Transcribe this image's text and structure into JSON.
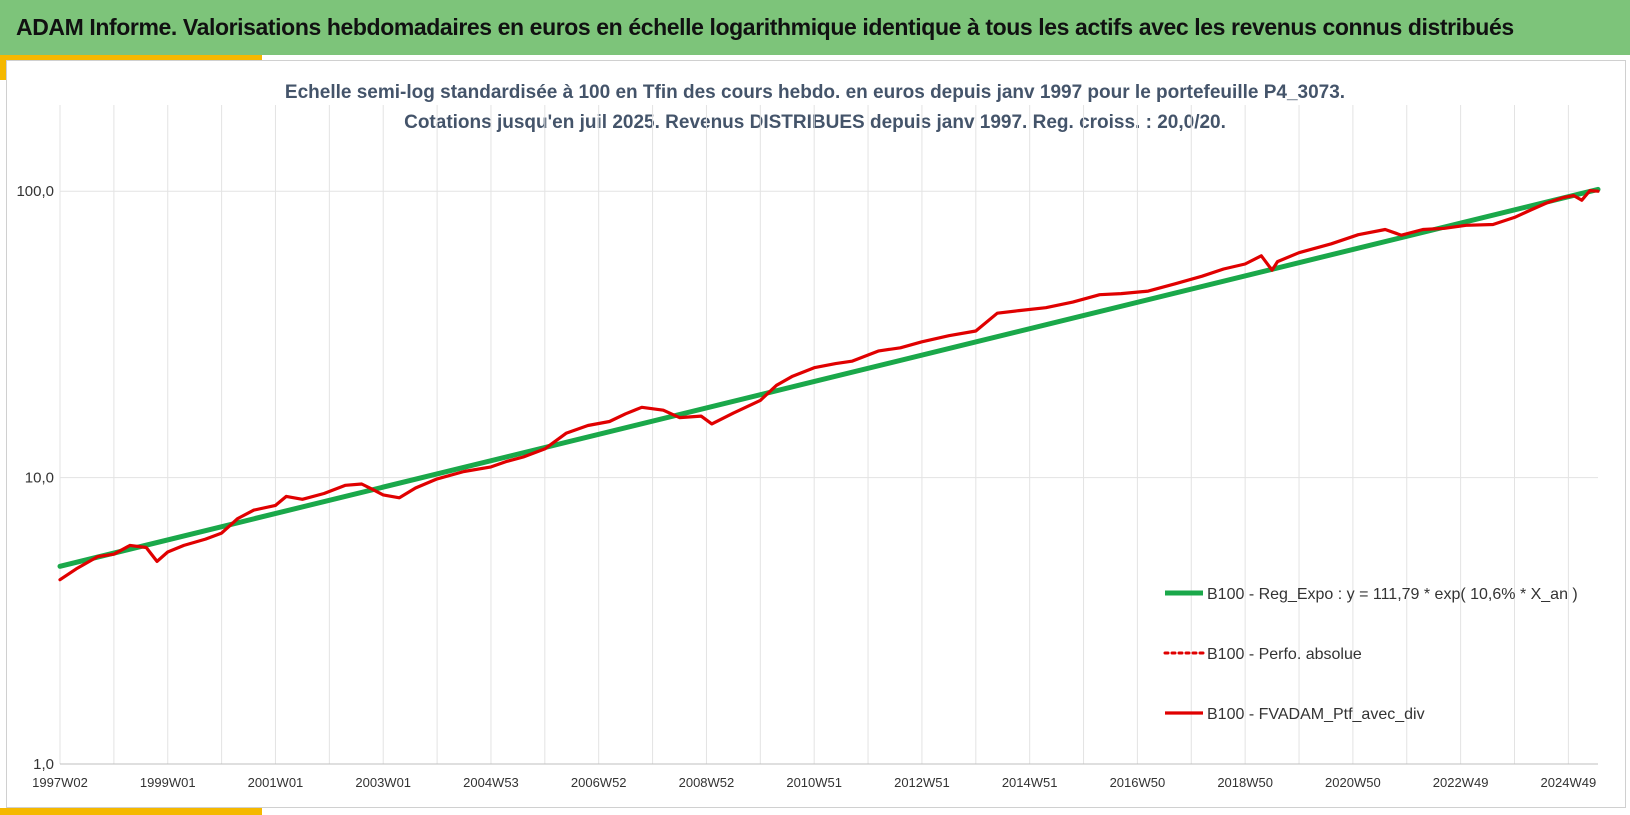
{
  "header": {
    "title": "ADAM Informe. Valorisations hebdomadaires en euros en échelle logarithmique identique à tous les actifs avec les revenus connus distribués"
  },
  "colors": {
    "header_bg": "#7dc47a",
    "accent": "#f5b800",
    "regression": "#1aa84a",
    "portfolio": "#e00000",
    "subtitle": "#44546a",
    "grid": "#e3e3e3"
  },
  "chart_data": {
    "type": "line",
    "subtitle_line1": "Echelle semi-log standardisée à 100 en Tfin des cours hebdo. en euros depuis janv 1997 pour le portefeuille P4_3073.",
    "subtitle_line2": "Cotations jusqu'en juil 2025. Revenus DISTRIBUES depuis janv 1997. Reg. croiss. : 20,0/20.",
    "y_scale": "log",
    "ylim": [
      1,
      200
    ],
    "y_ticks": [
      "1,0",
      "10,0",
      "100,0"
    ],
    "y_tick_values": [
      1,
      10,
      100
    ],
    "x_range": [
      1997.0,
      2025.55
    ],
    "x_ticks": [
      "1997W02",
      "1999W01",
      "2001W01",
      "2003W01",
      "2004W53",
      "2006W52",
      "2008W52",
      "2010W51",
      "2012W51",
      "2014W51",
      "2016W50",
      "2018W50",
      "2020W50",
      "2022W49",
      "2024W49"
    ],
    "x_tick_values": [
      1997.0,
      1999.0,
      2001.0,
      2003.0,
      2005.0,
      2007.0,
      2009.0,
      2011.0,
      2013.0,
      2015.0,
      2017.0,
      2019.0,
      2021.0,
      2023.0,
      2025.0
    ],
    "grid": true,
    "legend_position": "bottom-right",
    "series": [
      {
        "name": "B100 - Reg_Expo : y = 111,79 * exp( 10,6% *  X_an )",
        "style": "solid-thick",
        "color": "#1aa84a",
        "x": [
          1997.0,
          2025.55
        ],
        "values": [
          4.9,
          101.5
        ]
      },
      {
        "name": "B100 - Perfo. absolue",
        "style": "dotted",
        "color": "#e00000",
        "x": [],
        "values": []
      },
      {
        "name": "B100 - FVADAM_Ptf_avec_div",
        "style": "solid",
        "color": "#e00000",
        "x": [
          1997.0,
          1997.3,
          1997.7,
          1998.0,
          1998.3,
          1998.6,
          1998.8,
          1999.0,
          1999.3,
          1999.7,
          2000.0,
          2000.3,
          2000.6,
          2001.0,
          2001.2,
          2001.5,
          2001.9,
          2002.3,
          2002.6,
          2002.8,
          2003.0,
          2003.3,
          2003.6,
          2004.0,
          2004.5,
          2005.0,
          2005.3,
          2005.6,
          2006.0,
          2006.4,
          2006.8,
          2007.2,
          2007.5,
          2007.8,
          2008.2,
          2008.5,
          2008.9,
          2009.1,
          2009.5,
          2010.0,
          2010.3,
          2010.6,
          2011.0,
          2011.4,
          2011.7,
          2012.2,
          2012.6,
          2013.0,
          2013.5,
          2014.0,
          2014.4,
          2014.8,
          2015.3,
          2015.8,
          2016.3,
          2016.7,
          2017.2,
          2017.7,
          2018.2,
          2018.6,
          2019.0,
          2019.3,
          2019.5,
          2019.6,
          2020.0,
          2020.6,
          2021.1,
          2021.6,
          2021.9,
          2022.3,
          2022.7,
          2023.1,
          2023.6,
          2024.0,
          2024.3,
          2024.6,
          2024.9,
          2025.1,
          2025.25,
          2025.4,
          2025.55
        ],
        "values": [
          4.4,
          4.8,
          5.3,
          5.4,
          5.8,
          5.7,
          5.1,
          5.5,
          5.8,
          6.1,
          6.4,
          7.2,
          7.7,
          8.0,
          8.6,
          8.4,
          8.8,
          9.4,
          9.5,
          9.1,
          8.7,
          8.5,
          9.2,
          9.9,
          10.5,
          10.9,
          11.4,
          11.8,
          12.6,
          14.3,
          15.2,
          15.7,
          16.7,
          17.6,
          17.2,
          16.2,
          16.4,
          15.4,
          16.8,
          18.6,
          21.0,
          22.6,
          24.2,
          25.0,
          25.5,
          27.7,
          28.4,
          29.8,
          31.3,
          32.5,
          37.5,
          38.3,
          39.2,
          41.0,
          43.5,
          43.9,
          44.8,
          47.5,
          50.5,
          53.5,
          55.7,
          59.5,
          53.0,
          56.8,
          61.0,
          65.5,
          70.5,
          73.5,
          70.2,
          73.5,
          74.2,
          76.0,
          76.5,
          81.0,
          86.0,
          91.0,
          95.0,
          96.5,
          93.0,
          100.5,
          100.0
        ]
      }
    ]
  }
}
